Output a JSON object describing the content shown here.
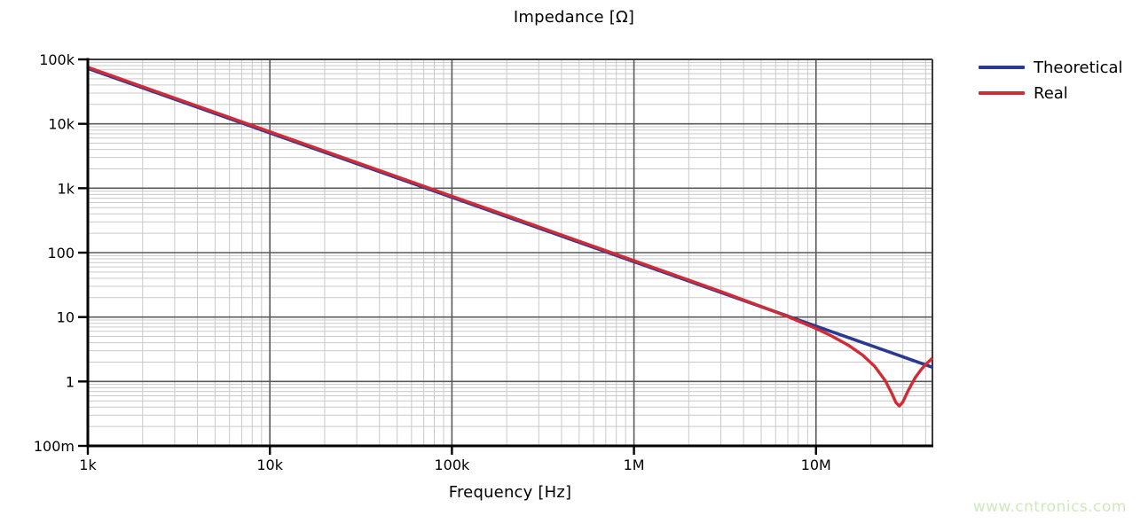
{
  "title": "Impedance [Ω]",
  "xlabel": "Frequency [Hz]",
  "watermark": "www.cntronics.com",
  "colors": {
    "theoretical_line": "#2b3991",
    "real_line": "#d22b35",
    "grid_minor": "#c9c9c9",
    "grid_major": "#5a5a5a",
    "plot_border": "#3a3a3a",
    "axis": "#000000",
    "text": "#000000",
    "watermark": "#cfe8bd",
    "background": "#ffffff"
  },
  "legend": {
    "position": "top-right",
    "items": [
      {
        "label": "Theoretical",
        "color": "#2b3991"
      },
      {
        "label": "Real",
        "color": "#d22b35"
      }
    ]
  },
  "chart_data": {
    "type": "line",
    "title": "Impedance [Ω]",
    "xlabel": "Frequency [Hz]",
    "ylabel": "",
    "x_scale": "log",
    "y_scale": "log",
    "xlim": [
      1000,
      43600000
    ],
    "ylim": [
      0.1,
      100000
    ],
    "grid": "log major and minor gridlines on",
    "legend_position": "top-right outside plot",
    "x_ticks": [
      {
        "value": 1000,
        "label": "1k"
      },
      {
        "value": 10000,
        "label": "10k"
      },
      {
        "value": 100000,
        "label": "100k"
      },
      {
        "value": 1000000,
        "label": "1M"
      },
      {
        "value": 10000000,
        "label": "10M"
      }
    ],
    "y_ticks": [
      {
        "value": 100000,
        "label": "100k"
      },
      {
        "value": 10000,
        "label": "10k"
      },
      {
        "value": 1000,
        "label": "1k"
      },
      {
        "value": 100,
        "label": "100"
      },
      {
        "value": 10,
        "label": "10"
      },
      {
        "value": 1,
        "label": "1"
      },
      {
        "value": 0.1,
        "label": "100m"
      }
    ],
    "series": [
      {
        "name": "Theoretical",
        "color": "#2b3991",
        "points": [
          [
            1000,
            72340
          ],
          [
            10000,
            7234
          ],
          [
            100000,
            723.4
          ],
          [
            1000000,
            72.34
          ],
          [
            10000000,
            7.234
          ],
          [
            43600000,
            1.66
          ]
        ]
      },
      {
        "name": "Real",
        "color": "#d22b35",
        "points": [
          [
            1000,
            72340
          ],
          [
            2000,
            36170
          ],
          [
            5000,
            14470
          ],
          [
            10000,
            7234
          ],
          [
            20000,
            3617
          ],
          [
            50000,
            1447
          ],
          [
            100000,
            723.4
          ],
          [
            200000,
            361.7
          ],
          [
            500000,
            144.6
          ],
          [
            1000000,
            72.26
          ],
          [
            2000000,
            35.99
          ],
          [
            3000000,
            23.85
          ],
          [
            5000000,
            14.03
          ],
          [
            7000000,
            9.73
          ],
          [
            10000000,
            6.37
          ],
          [
            12000000,
            4.99
          ],
          [
            15000000,
            3.53
          ],
          [
            18000000,
            2.47
          ],
          [
            21000000,
            1.65
          ],
          [
            24000000,
            0.99
          ],
          [
            26000000,
            0.64
          ],
          [
            27500000,
            0.45
          ],
          [
            28700000,
            0.4
          ],
          [
            30000000,
            0.46
          ],
          [
            32000000,
            0.68
          ],
          [
            35000000,
            1.09
          ],
          [
            38000000,
            1.49
          ],
          [
            41000000,
            1.88
          ],
          [
            43600000,
            2.21
          ]
        ]
      }
    ]
  }
}
